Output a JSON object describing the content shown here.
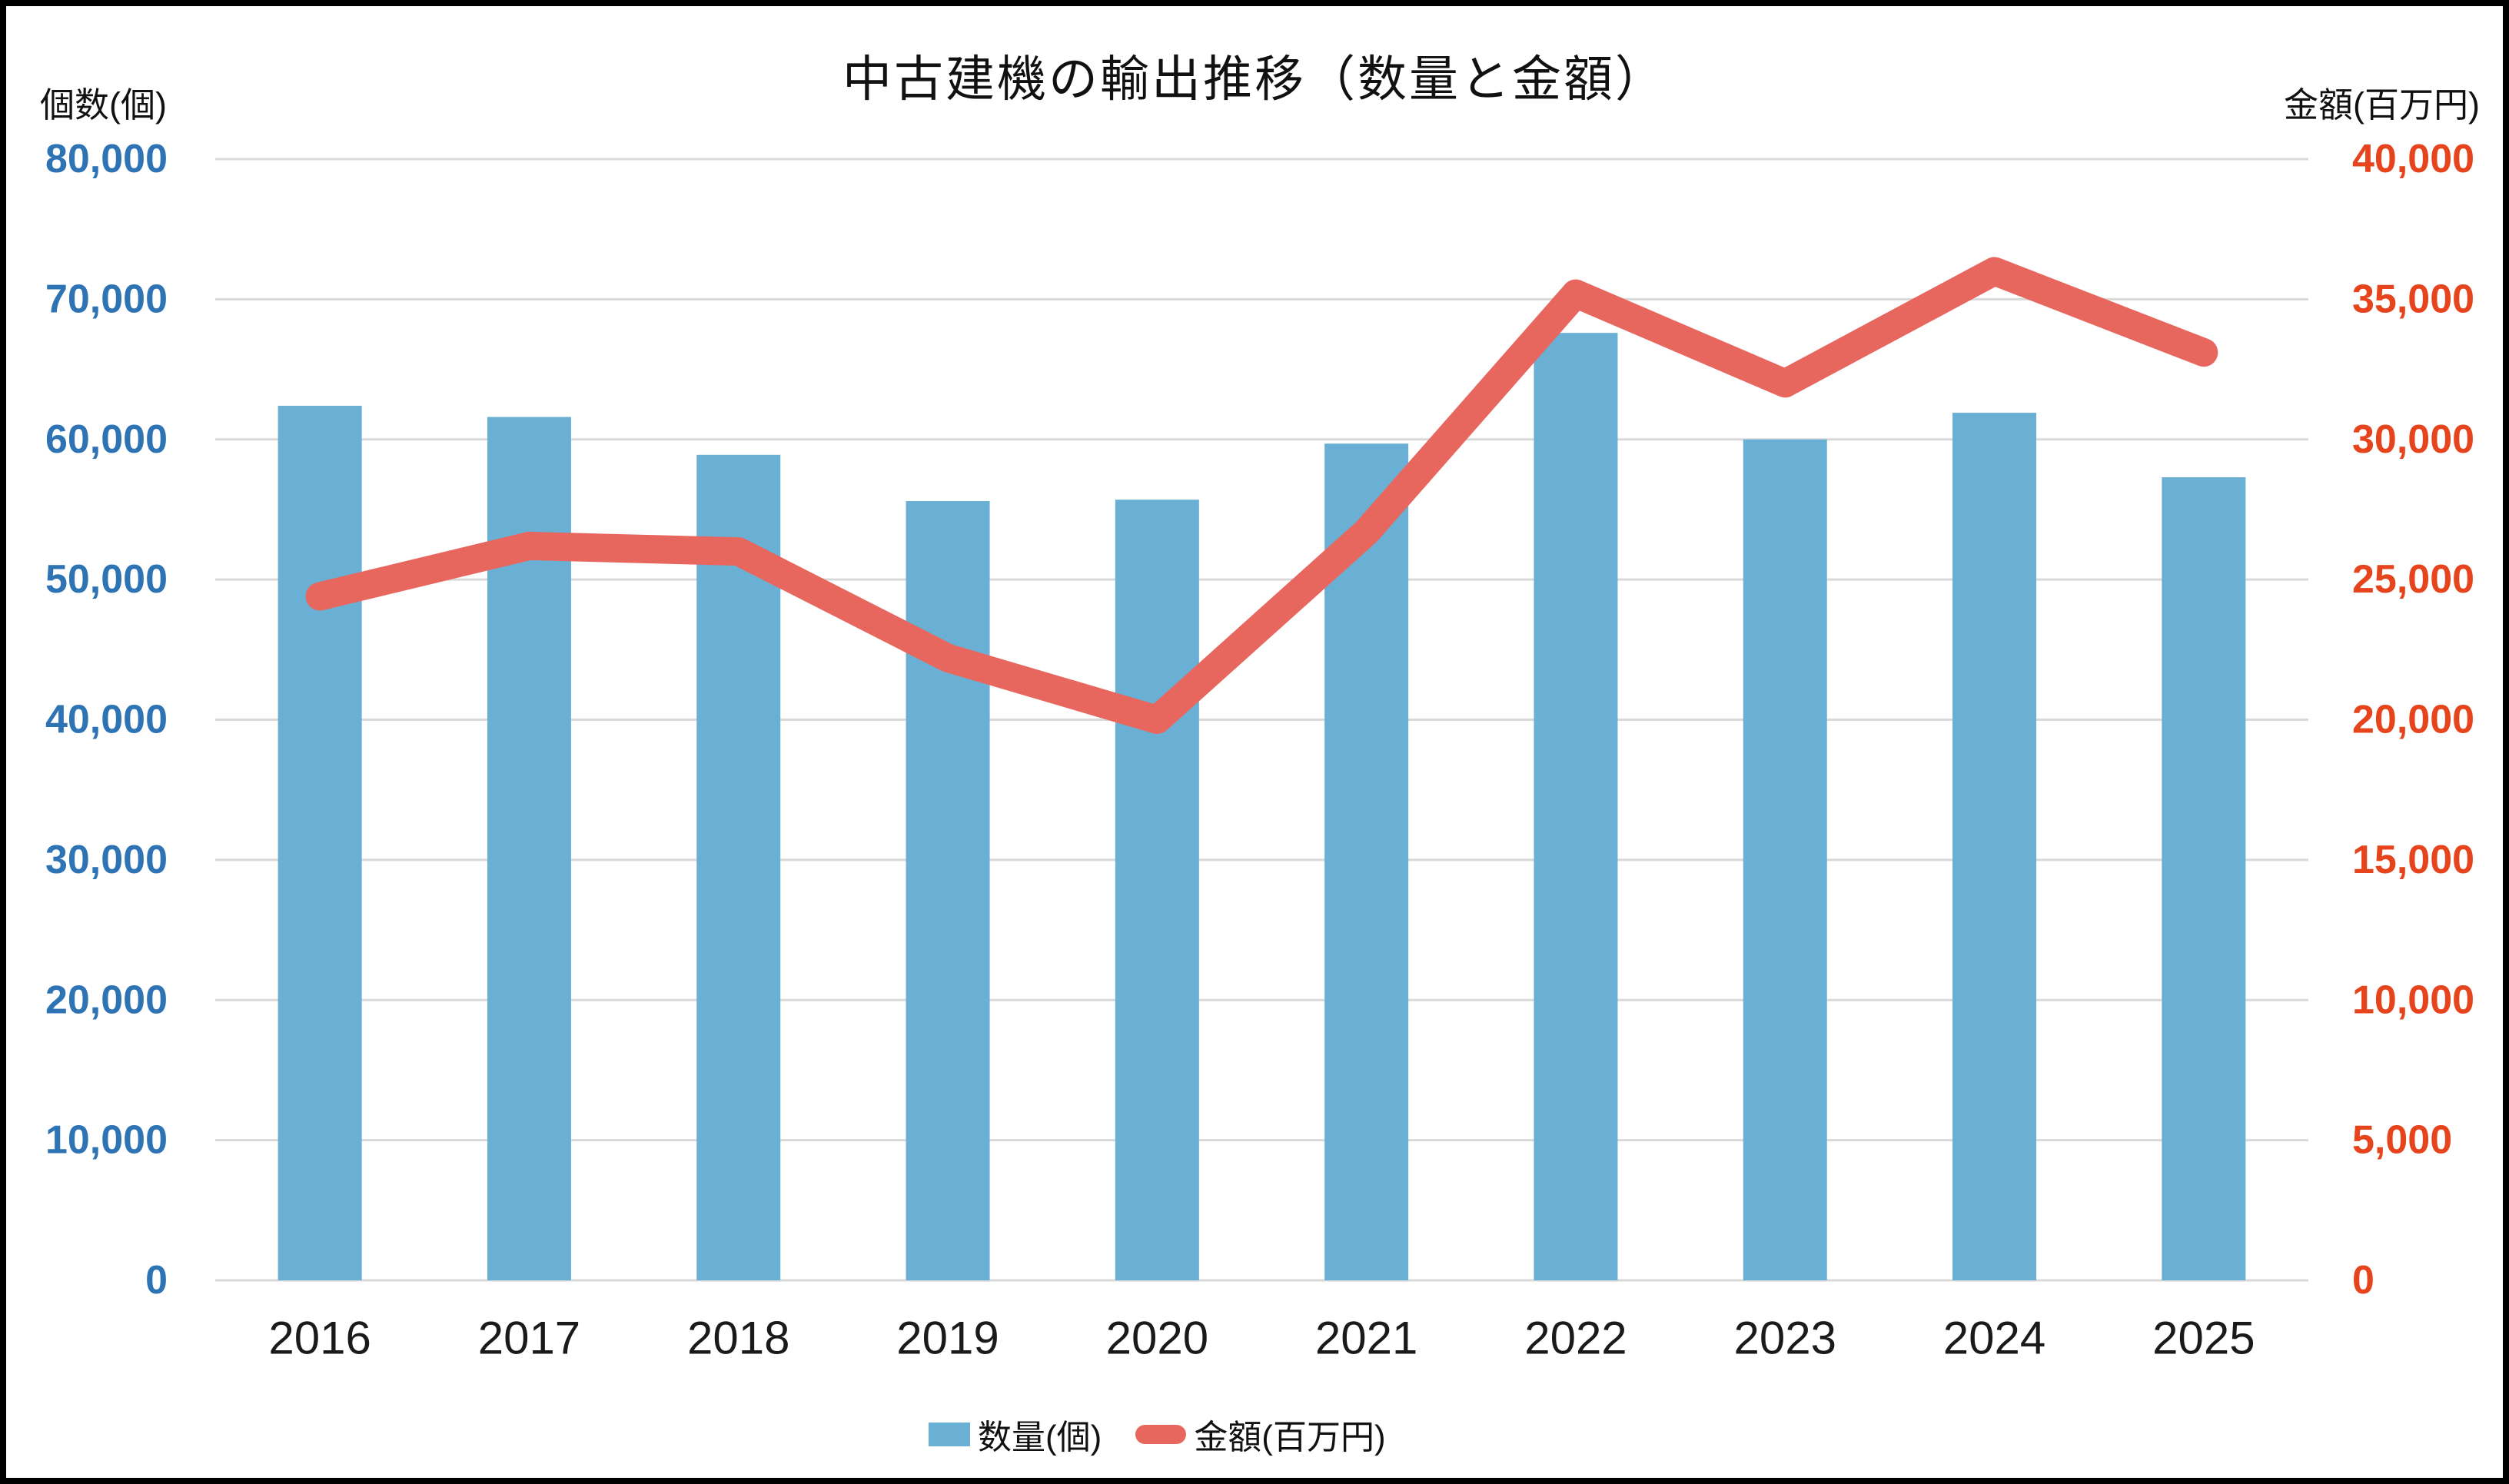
{
  "chart_data": {
    "type": "bar+line",
    "title": "中古建機の輸出推移（数量と金額）",
    "categories": [
      "2016",
      "2017",
      "2018",
      "2019",
      "2020",
      "2021",
      "2022",
      "2023",
      "2024",
      "2025"
    ],
    "series": [
      {
        "name": "数量(個)",
        "type": "bar",
        "axis": "left",
        "color": "#6AB0D4",
        "values": [
          62400,
          61600,
          58900,
          55600,
          55700,
          59700,
          67600,
          60000,
          61900,
          57300
        ]
      },
      {
        "name": "金額(百万円)",
        "type": "line",
        "axis": "right",
        "color": "#E7675F",
        "values": [
          24400,
          26200,
          26000,
          22200,
          20000,
          26700,
          35200,
          32000,
          36000,
          33100
        ]
      }
    ],
    "y_left": {
      "title": "個数(個)",
      "min": 0,
      "max": 80000,
      "step": 10000,
      "color": "#2E74B5",
      "tick_labels": [
        "0",
        "10,000",
        "20,000",
        "30,000",
        "40,000",
        "50,000",
        "60,000",
        "70,000",
        "80,000"
      ]
    },
    "y_right": {
      "title": "金額(百万円)",
      "min": 0,
      "max": 40000,
      "step": 5000,
      "color": "#E5441C",
      "tick_labels": [
        "0",
        "5,000",
        "10,000",
        "15,000",
        "20,000",
        "25,000",
        "30,000",
        "35,000",
        "40,000"
      ]
    },
    "grid": {
      "color": "#D9D9D9",
      "horizontal": true,
      "vertical": false
    },
    "x_tick_color": "#1a1a1a",
    "legend": {
      "position": "bottom",
      "items": [
        "数量(個)",
        "金額(百万円)"
      ]
    }
  }
}
